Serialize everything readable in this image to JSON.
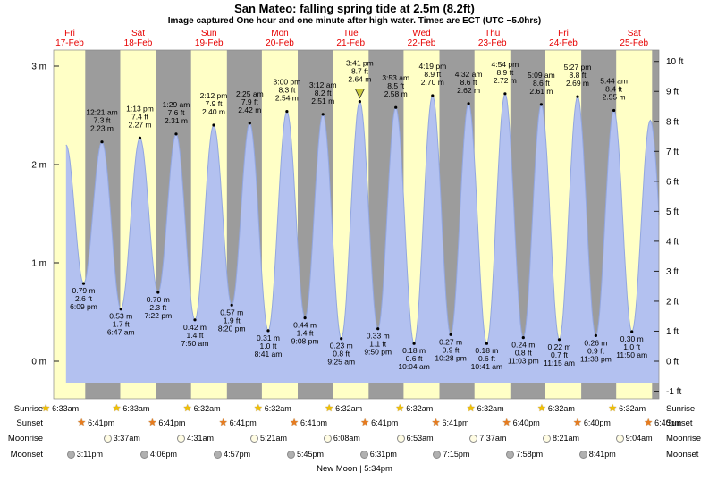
{
  "title": "San Mateo: falling  spring tide at 2.5m (8.2ft)",
  "subtitle": "Image captured One hour and one minute after high water. Times are ECT (UTC −5.0hrs)",
  "colors": {
    "day_band": "#ffffc6",
    "night_band": "#9c9c9c",
    "tide_fill": "#b3c1f0",
    "tide_edge": "#93a7e0",
    "day_label": "#e60000",
    "marker": "#c9c93c",
    "sunrise_star": "#f2c200",
    "sunset_star": "#e87b1e",
    "moonrise_fill": "#fffce3",
    "moonset_fill": "#b0b0b0"
  },
  "days": [
    {
      "dow": "Fri",
      "date": "17-Feb"
    },
    {
      "dow": "Sat",
      "date": "18-Feb"
    },
    {
      "dow": "Sun",
      "date": "19-Feb"
    },
    {
      "dow": "Mon",
      "date": "20-Feb"
    },
    {
      "dow": "Tue",
      "date": "21-Feb"
    },
    {
      "dow": "Wed",
      "date": "22-Feb"
    },
    {
      "dow": "Thu",
      "date": "23-Feb"
    },
    {
      "dow": "Fri",
      "date": "24-Feb"
    },
    {
      "dow": "Sat",
      "date": "25-Feb"
    }
  ],
  "axes": {
    "left_ticks": [
      {
        "label": "3 m",
        "m": 3
      },
      {
        "label": "2 m",
        "m": 2
      },
      {
        "label": "1 m",
        "m": 1
      },
      {
        "label": "0 m",
        "m": 0
      }
    ],
    "right_ticks": [
      {
        "label": "10 ft",
        "ft": 10
      },
      {
        "label": "9 ft",
        "ft": 9
      },
      {
        "label": "8 ft",
        "ft": 8
      },
      {
        "label": "7 ft",
        "ft": 7
      },
      {
        "label": "6 ft",
        "ft": 6
      },
      {
        "label": "5 ft",
        "ft": 5
      },
      {
        "label": "4 ft",
        "ft": 4
      },
      {
        "label": "3 ft",
        "ft": 3
      },
      {
        "label": "2 ft",
        "ft": 2
      },
      {
        "label": "1 ft",
        "ft": 1
      },
      {
        "label": "0 ft",
        "ft": 0
      },
      {
        "label": "-1 ft",
        "ft": -1
      }
    ]
  },
  "chart_data": {
    "type": "area",
    "series_name": "tide height",
    "y_axis_left": "meters",
    "y_axis_right": "feet",
    "ylim_m": [
      -0.24,
      3.18
    ],
    "x_axis": "Feb 17 - Feb 25, alternating daylight (yellow) and night (gray) bands",
    "events": [
      {
        "day": 0,
        "type": "low",
        "time": "6:09 pm",
        "m": 0.79,
        "ft": 2.6
      },
      {
        "day": 1,
        "type": "high",
        "time": "12:21 am",
        "m": 2.23,
        "ft": 7.3
      },
      {
        "day": 1,
        "type": "low",
        "time": "6:47 am",
        "m": 0.53,
        "ft": 1.7
      },
      {
        "day": 1,
        "type": "high",
        "time": "1:13 pm",
        "m": 2.27,
        "ft": 7.4
      },
      {
        "day": 1,
        "type": "low",
        "time": "7:22 pm",
        "m": 0.7,
        "ft": 2.3
      },
      {
        "day": 2,
        "type": "high",
        "time": "1:29 am",
        "m": 2.31,
        "ft": 7.6
      },
      {
        "day": 2,
        "type": "low",
        "time": "7:50 am",
        "m": 0.42,
        "ft": 1.4
      },
      {
        "day": 2,
        "type": "high",
        "time": "2:12 pm",
        "m": 2.4,
        "ft": 7.9
      },
      {
        "day": 2,
        "type": "low",
        "time": "8:20 pm",
        "m": 0.57,
        "ft": 1.9
      },
      {
        "day": 3,
        "type": "high",
        "time": "2:25 am",
        "m": 2.42,
        "ft": 7.9
      },
      {
        "day": 3,
        "type": "low",
        "time": "8:41 am",
        "m": 0.31,
        "ft": 1.0
      },
      {
        "day": 3,
        "type": "high",
        "time": "3:00 pm",
        "m": 2.54,
        "ft": 8.3
      },
      {
        "day": 3,
        "type": "low",
        "time": "9:08 pm",
        "m": 0.44,
        "ft": 1.4
      },
      {
        "day": 4,
        "type": "high",
        "time": "3:12 am",
        "m": 2.51,
        "ft": 8.2
      },
      {
        "day": 4,
        "type": "low",
        "time": "9:25 am",
        "m": 0.23,
        "ft": 0.8
      },
      {
        "day": 4,
        "type": "high",
        "time": "3:41 pm",
        "m": 2.64,
        "ft": 8.7,
        "marker": true
      },
      {
        "day": 4,
        "type": "low",
        "time": "9:50 pm",
        "m": 0.33,
        "ft": 1.1
      },
      {
        "day": 5,
        "type": "high",
        "time": "3:53 am",
        "m": 2.58,
        "ft": 8.5
      },
      {
        "day": 5,
        "type": "low",
        "time": "10:04 am",
        "m": 0.18,
        "ft": 0.6
      },
      {
        "day": 5,
        "type": "high",
        "time": "4:19 pm",
        "m": 2.7,
        "ft": 8.9
      },
      {
        "day": 5,
        "type": "low",
        "time": "10:28 pm",
        "m": 0.27,
        "ft": 0.9
      },
      {
        "day": 6,
        "type": "high",
        "time": "4:32 am",
        "m": 2.62,
        "ft": 8.6
      },
      {
        "day": 6,
        "type": "low",
        "time": "10:41 am",
        "m": 0.18,
        "ft": 0.6
      },
      {
        "day": 6,
        "type": "high",
        "time": "4:54 pm",
        "m": 2.72,
        "ft": 8.9
      },
      {
        "day": 6,
        "type": "low",
        "time": "11:03 pm",
        "m": 0.24,
        "ft": 0.8
      },
      {
        "day": 7,
        "type": "high",
        "time": "5:09 am",
        "m": 2.61,
        "ft": 8.6
      },
      {
        "day": 7,
        "type": "low",
        "time": "11:15 am",
        "m": 0.22,
        "ft": 0.7
      },
      {
        "day": 7,
        "type": "high",
        "time": "5:27 pm",
        "m": 2.69,
        "ft": 8.8
      },
      {
        "day": 7,
        "type": "low",
        "time": "11:38 pm",
        "m": 0.26,
        "ft": 0.9
      },
      {
        "day": 8,
        "type": "high",
        "time": "5:44 am",
        "m": 2.55,
        "ft": 8.4
      },
      {
        "day": 8,
        "type": "low",
        "time": "11:50 am",
        "m": 0.3,
        "ft": 1.0
      }
    ],
    "edge_points": [
      {
        "day": 0,
        "time": "12:10 pm",
        "m": 2.2
      },
      {
        "day": 8,
        "time": "6:05 pm",
        "m": 2.45
      },
      {
        "day": 9,
        "time": "12:20 am",
        "m": 0.3
      }
    ],
    "capture_marker": {
      "day": 4,
      "time": "3:41 pm",
      "note": "yellow triangle at captured high water"
    }
  },
  "almanac": {
    "rows": [
      {
        "label": "Sunrise",
        "icon": "sunrise-star-icon",
        "entries": [
          {
            "day": 0,
            "time": "6:33am"
          },
          {
            "day": 1,
            "time": "6:33am"
          },
          {
            "day": 2,
            "time": "6:32am"
          },
          {
            "day": 3,
            "time": "6:32am"
          },
          {
            "day": 4,
            "time": "6:32am"
          },
          {
            "day": 5,
            "time": "6:32am"
          },
          {
            "day": 6,
            "time": "6:32am"
          },
          {
            "day": 7,
            "time": "6:32am"
          },
          {
            "day": 8,
            "time": "6:32am"
          }
        ]
      },
      {
        "label": "Sunset",
        "icon": "sunset-star-icon",
        "entries": [
          {
            "day": 0,
            "time": "6:41pm"
          },
          {
            "day": 1,
            "time": "6:41pm"
          },
          {
            "day": 2,
            "time": "6:41pm"
          },
          {
            "day": 3,
            "time": "6:41pm"
          },
          {
            "day": 4,
            "time": "6:41pm"
          },
          {
            "day": 5,
            "time": "6:41pm"
          },
          {
            "day": 6,
            "time": "6:40pm"
          },
          {
            "day": 7,
            "time": "6:40pm"
          },
          {
            "day": 8,
            "time": "6:40pm"
          }
        ]
      },
      {
        "label": "Moonrise",
        "icon": "moonrise-circle-icon",
        "entries": [
          {
            "day": 1,
            "time": "3:37am"
          },
          {
            "day": 2,
            "time": "4:31am"
          },
          {
            "day": 3,
            "time": "5:21am"
          },
          {
            "day": 4,
            "time": "6:08am"
          },
          {
            "day": 5,
            "time": "6:53am"
          },
          {
            "day": 6,
            "time": "7:37am"
          },
          {
            "day": 7,
            "time": "8:21am"
          },
          {
            "day": 8,
            "time": "9:04am"
          }
        ]
      },
      {
        "label": "Moonset",
        "icon": "moonset-circle-icon",
        "entries": [
          {
            "day": 0,
            "time": "3:11pm"
          },
          {
            "day": 1,
            "time": "4:06pm"
          },
          {
            "day": 2,
            "time": "4:57pm"
          },
          {
            "day": 3,
            "time": "5:45pm"
          },
          {
            "day": 4,
            "time": "6:31pm"
          },
          {
            "day": 5,
            "time": "7:15pm"
          },
          {
            "day": 6,
            "time": "7:58pm"
          },
          {
            "day": 7,
            "time": "8:41pm"
          }
        ]
      }
    ],
    "moon_phase": "New Moon | 5:34pm"
  }
}
